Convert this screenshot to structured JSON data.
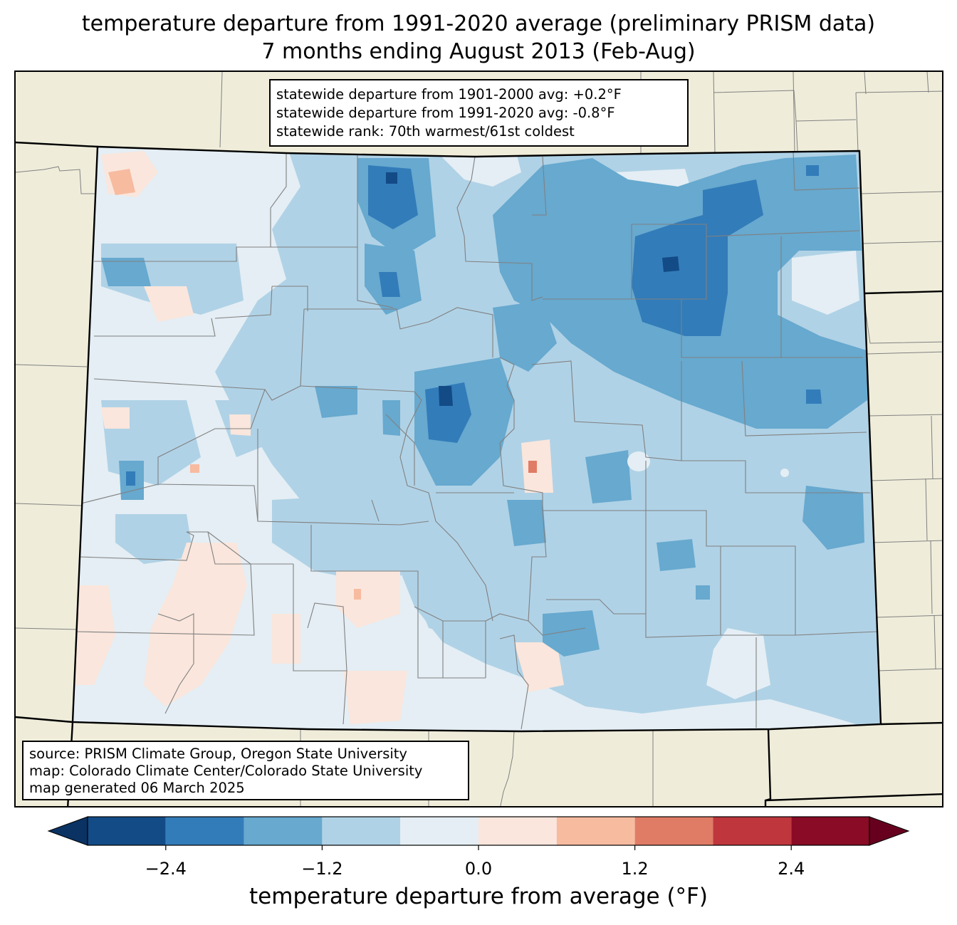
{
  "title": {
    "line1": "temperature departure from 1991-2020 average (preliminary PRISM data)",
    "line2": "7 months ending August 2013 (Feb-Aug)"
  },
  "stats_box": {
    "line1": "statewide departure from 1901-2000 avg: +0.2°F",
    "line2": "statewide departure from 1991-2020 avg: -0.8°F",
    "line3": "statewide rank: 70th warmest/61st coldest"
  },
  "source_box": {
    "line1": "source: PRISM Climate Group, Oregon State University",
    "line2": "map: Colorado Climate Center/Colorado State University",
    "line3": "map generated 06 March 2025"
  },
  "colorbar": {
    "label": "temperature departure from average (°F)",
    "ticks": [
      {
        "value": -2.4,
        "label": "−2.4"
      },
      {
        "value": -1.2,
        "label": "−1.2"
      },
      {
        "value": 0.0,
        "label": "0.0"
      },
      {
        "value": 1.2,
        "label": "1.2"
      },
      {
        "value": 2.4,
        "label": "2.4"
      }
    ],
    "range": [
      -3.0,
      3.0
    ],
    "bins": [
      {
        "min": -3.0,
        "max": -2.4,
        "color": "#134b87"
      },
      {
        "min": -2.4,
        "max": -1.8,
        "color": "#327cb9"
      },
      {
        "min": -1.8,
        "max": -1.2,
        "color": "#67a9cf"
      },
      {
        "min": -1.2,
        "max": -0.6,
        "color": "#b0d2e6"
      },
      {
        "min": -0.6,
        "max": 0.0,
        "color": "#e4eef4"
      },
      {
        "min": 0.0,
        "max": 0.6,
        "color": "#fae6dc"
      },
      {
        "min": 0.6,
        "max": 1.2,
        "color": "#f7bba0"
      },
      {
        "min": 1.2,
        "max": 1.8,
        "color": "#e07c66"
      },
      {
        "min": 1.8,
        "max": 2.4,
        "color": "#c0363d"
      },
      {
        "min": 2.4,
        "max": 3.0,
        "color": "#8a0b25"
      }
    ],
    "under_color": "#0a3263",
    "over_color": "#67001f"
  },
  "colors": {
    "land": "#efedda",
    "state_border": "#000000",
    "county_border": "#808080"
  }
}
